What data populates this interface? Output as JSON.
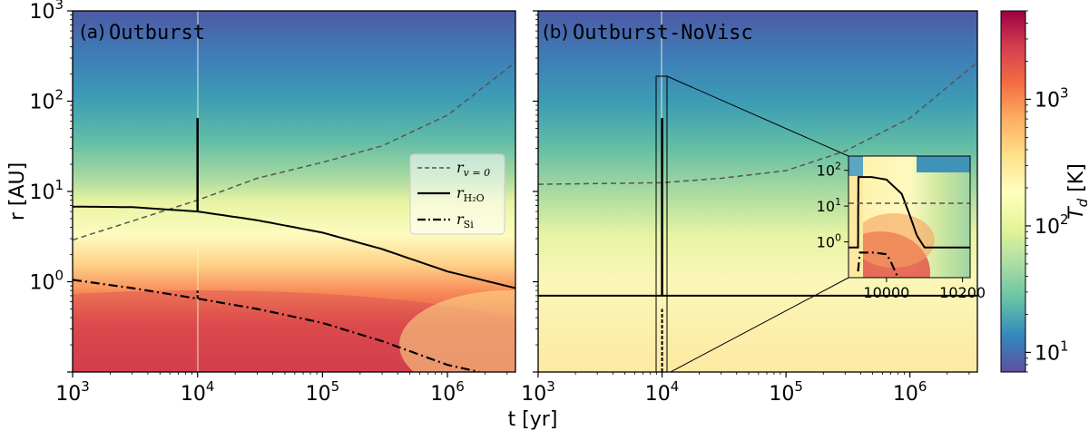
{
  "chart_data": [
    {
      "type": "heatmap",
      "panel": "(a)",
      "title": "Outburst",
      "xlabel": "t [yr]",
      "ylabel": "r [AU]",
      "xscale": "log",
      "yscale": "log",
      "xlim": [
        1000,
        3500000
      ],
      "ylim": [
        0.1,
        1000
      ],
      "x_ticks": [
        "10^3",
        "10^4",
        "10^5",
        "10^6"
      ],
      "y_ticks": [
        "10^0",
        "10^1",
        "10^2",
        "10^3"
      ],
      "outburst_time": 10000,
      "series": [
        {
          "name": "r_{v=0}",
          "style": "dashed",
          "color": "#555555",
          "x": [
            1000,
            3000,
            10000,
            30000,
            100000,
            300000,
            1000000,
            3500000
          ],
          "y": [
            2.9,
            4.7,
            8.0,
            14.0,
            21.0,
            32.0,
            70.0,
            270.0
          ]
        },
        {
          "name": "r_{H2O}",
          "style": "solid",
          "color": "#000000",
          "x": [
            1000,
            3000,
            10000,
            30000,
            100000,
            300000,
            1000000,
            3500000
          ],
          "y": [
            6.8,
            6.7,
            6.0,
            4.8,
            3.5,
            2.3,
            1.3,
            0.85
          ],
          "spike": {
            "x": 10000,
            "from": 6.0,
            "to": 65
          }
        },
        {
          "name": "r_{Si}",
          "style": "dashdot",
          "color": "#000000",
          "x": [
            1000,
            3000,
            10000,
            30000,
            100000,
            300000,
            1000000,
            1800000
          ],
          "y": [
            1.05,
            0.85,
            0.65,
            0.5,
            0.35,
            0.22,
            0.12,
            0.1
          ],
          "spike": {
            "x": 10000,
            "from": 0.65,
            "to": 0.8
          }
        }
      ],
      "legend": {
        "position": "center-right",
        "entries": [
          "r_{v=0}",
          "r_{H2O}",
          "r_{Si}"
        ]
      }
    },
    {
      "type": "heatmap",
      "panel": "(b)",
      "title": "Outburst-NoVisc",
      "xlabel": "t [yr]",
      "xscale": "log",
      "yscale": "log",
      "xlim": [
        1000,
        3500000
      ],
      "ylim": [
        0.1,
        1000
      ],
      "x_ticks": [
        "10^3",
        "10^4",
        "10^5",
        "10^6"
      ],
      "outburst_time": 10000,
      "series": [
        {
          "name": "r_{v=0}",
          "style": "dashed",
          "color": "#555555",
          "x": [
            1000,
            10000,
            30000,
            100000,
            300000,
            1000000,
            3500000
          ],
          "y": [
            12.0,
            12.5,
            14.0,
            17.0,
            28.0,
            65.0,
            270.0
          ]
        },
        {
          "name": "r_{H2O}",
          "style": "solid",
          "color": "#000000",
          "x": [
            1000,
            3500000
          ],
          "y": [
            0.7,
            0.7
          ],
          "spike": {
            "x": 10000,
            "from": 0.7,
            "to": 65
          }
        },
        {
          "name": "r_{Si}",
          "style": "dashdot",
          "color": "#000000",
          "spike": {
            "x": 10000,
            "from": 0.1,
            "to": 0.5
          }
        }
      ],
      "inset": {
        "xlim": [
          9900,
          10220
        ],
        "ylim": [
          0.1,
          250
        ],
        "x_ticks": [
          "10000",
          "10200"
        ],
        "y_ticks": [
          "10^0",
          "10^1",
          "10^2"
        ],
        "zoom_box": {
          "t": [
            9700,
            10500
          ],
          "r": [
            0.1,
            200
          ]
        },
        "series": [
          {
            "name": "r_{H2O}",
            "x": [
              9900,
              9925,
              9926,
              9960,
              10000,
              10040,
              10060,
              10080,
              10100,
              10220
            ],
            "y": [
              0.7,
              0.7,
              65,
              65,
              55,
              22,
              6,
              1.5,
              0.7,
              0.7
            ]
          },
          {
            "name": "r_{v=0}",
            "x": [
              9900,
              10220
            ],
            "y": [
              12,
              12
            ]
          },
          {
            "name": "r_{Si}",
            "x": [
              9925,
              9930,
              9970,
              10000,
              10010,
              10030
            ],
            "y": [
              0.15,
              0.5,
              0.5,
              0.45,
              0.3,
              0.1
            ]
          }
        ]
      }
    },
    {
      "type": "colorbar",
      "label": "T_d [K]",
      "scale": "log",
      "range": [
        7,
        5000
      ],
      "ticks": [
        "10^1",
        "10^2",
        "10^3"
      ],
      "colormap": "Spectral_r",
      "colors": [
        "#5e4fa2",
        "#3288bd",
        "#66c2a5",
        "#abdda4",
        "#e6f598",
        "#ffffbf",
        "#fee08b",
        "#fdae61",
        "#f46d43",
        "#d53e4f",
        "#9e0142"
      ]
    }
  ]
}
